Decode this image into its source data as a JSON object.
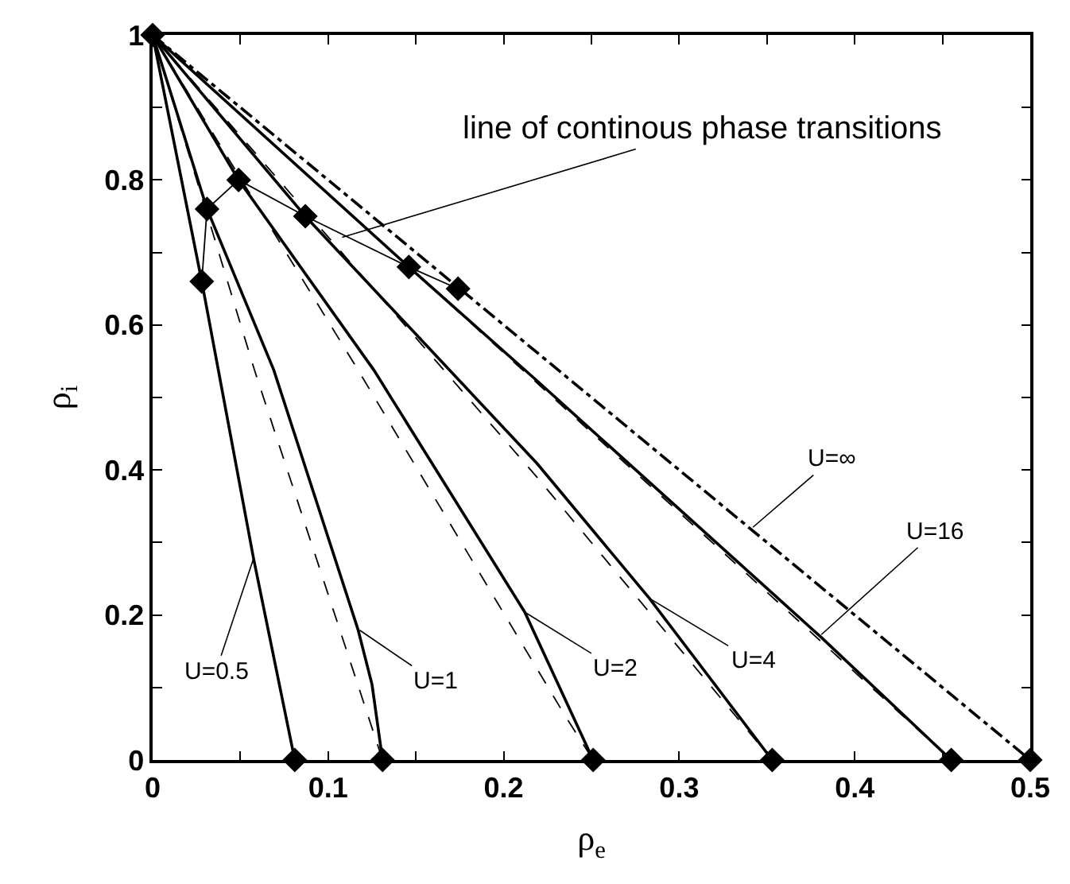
{
  "chart_data": {
    "type": "line",
    "xlabel": "ρ$_{e}$",
    "ylabel": "ρ$_{i}$",
    "xlim": [
      0,
      0.5
    ],
    "ylim": [
      0,
      1
    ],
    "xticks": [
      0,
      {
        "value": 0.05,
        "label": null
      },
      0.1,
      {
        "value": 0.15,
        "label": null
      },
      0.2,
      {
        "value": 0.25,
        "label": null
      },
      0.3,
      {
        "value": 0.35,
        "label": null
      },
      0.4,
      {
        "value": 0.45,
        "label": null
      },
      0.5
    ],
    "yticks": [
      0,
      {
        "value": 0.1,
        "label": null
      },
      0.2,
      {
        "value": 0.3,
        "label": null
      },
      0.4,
      {
        "value": 0.5,
        "label": null
      },
      0.6,
      {
        "value": 0.7,
        "label": null
      },
      0.8,
      {
        "value": 0.9,
        "label": null
      },
      1
    ],
    "series": [
      {
        "color": "#000000",
        "line_style": "solid",
        "marker": "none",
        "x": [
          0,
          0.028,
          0.0575,
          0.081
        ],
        "values": [
          1,
          0.66,
          0.278,
          0
        ]
      },
      {
        "color": "#000000",
        "line_style": "solid",
        "marker": "none",
        "x": [
          0,
          0.031,
          0.069,
          0.117,
          0.125,
          0.131
        ],
        "values": [
          1,
          0.76,
          0.538,
          0.18,
          0.104,
          0
        ]
      },
      {
        "color": "#000000",
        "line_style": "solid",
        "marker": "none",
        "x": [
          0,
          0.049,
          0.126,
          0.212,
          0.251
        ],
        "values": [
          1,
          0.8,
          0.538,
          0.204,
          0
        ]
      },
      {
        "color": "#000000",
        "line_style": "solid",
        "marker": "none",
        "x": [
          0,
          0.087,
          0.219,
          0.283,
          0.353
        ],
        "values": [
          1,
          0.75,
          0.409,
          0.223,
          0
        ]
      },
      {
        "color": "#000000",
        "line_style": "solid",
        "marker": "none",
        "x": [
          0,
          0.146,
          0.219,
          0.381,
          0.455
        ],
        "values": [
          1,
          0.68,
          0.523,
          0.169,
          0
        ]
      },
      {
        "color": "#000000",
        "line_style": "dashdot",
        "marker": "none",
        "x": [
          0,
          0.5
        ],
        "values": [
          1,
          0
        ]
      },
      {
        "color": "#000000",
        "line_style": "dashed",
        "marker": "none",
        "x": [
          0,
          0.058,
          0.131
        ],
        "values": [
          1,
          0.538,
          0
        ]
      },
      {
        "color": "#000000",
        "line_style": "dashed",
        "marker": "none",
        "x": [
          0,
          0.117,
          0.235,
          0.251
        ],
        "values": [
          1,
          0.538,
          0.061,
          0
        ]
      },
      {
        "color": "#000000",
        "line_style": "dashed",
        "marker": "none",
        "x": [
          0,
          0.219,
          0.353
        ],
        "values": [
          1,
          0.39,
          0
        ]
      },
      {
        "color": "#000000",
        "line_style": "dashed",
        "marker": "none",
        "x": [
          0,
          0.219,
          0.455
        ],
        "values": [
          1,
          0.52,
          0
        ]
      },
      {
        "color": "#000000",
        "line_style": "solid",
        "marker": "none",
        "x": [
          0.028,
          0.031,
          0.049,
          0.087,
          0.146,
          0.174
        ],
        "values": [
          0.66,
          0.76,
          0.8,
          0.75,
          0.68,
          0.65
        ]
      },
      {
        "type": "scatter",
        "color": "#000000",
        "marker": "diamond",
        "x": [
          0.028,
          0.031,
          0.049,
          0.087,
          0.146,
          0.174
        ],
        "values": [
          0.66,
          0.76,
          0.8,
          0.75,
          0.68,
          0.65
        ]
      },
      {
        "type": "scatter",
        "color": "#000000",
        "marker": "diamond",
        "x": [
          0,
          0.081,
          0.131,
          0.251,
          0.353,
          0.455,
          0.5
        ],
        "values": [
          1,
          0,
          0,
          0,
          0,
          0,
          0
        ]
      }
    ],
    "annotations": [
      {
        "text": "line of continous phase transitions",
        "x": 0.108,
        "y": 0.721
      },
      {
        "text": "U=0.5",
        "x": 0.0575,
        "y": 0.278
      },
      {
        "text": "U=1",
        "x": 0.118,
        "y": 0.179
      },
      {
        "text": "U=2",
        "x": 0.212,
        "y": 0.204
      },
      {
        "text": "U=4",
        "x": 0.283,
        "y": 0.223
      },
      {
        "text": "U=∞",
        "x": 0.342,
        "y": 0.321
      },
      {
        "text": "U=16",
        "x": 0.381,
        "y": 0.173
      }
    ]
  }
}
